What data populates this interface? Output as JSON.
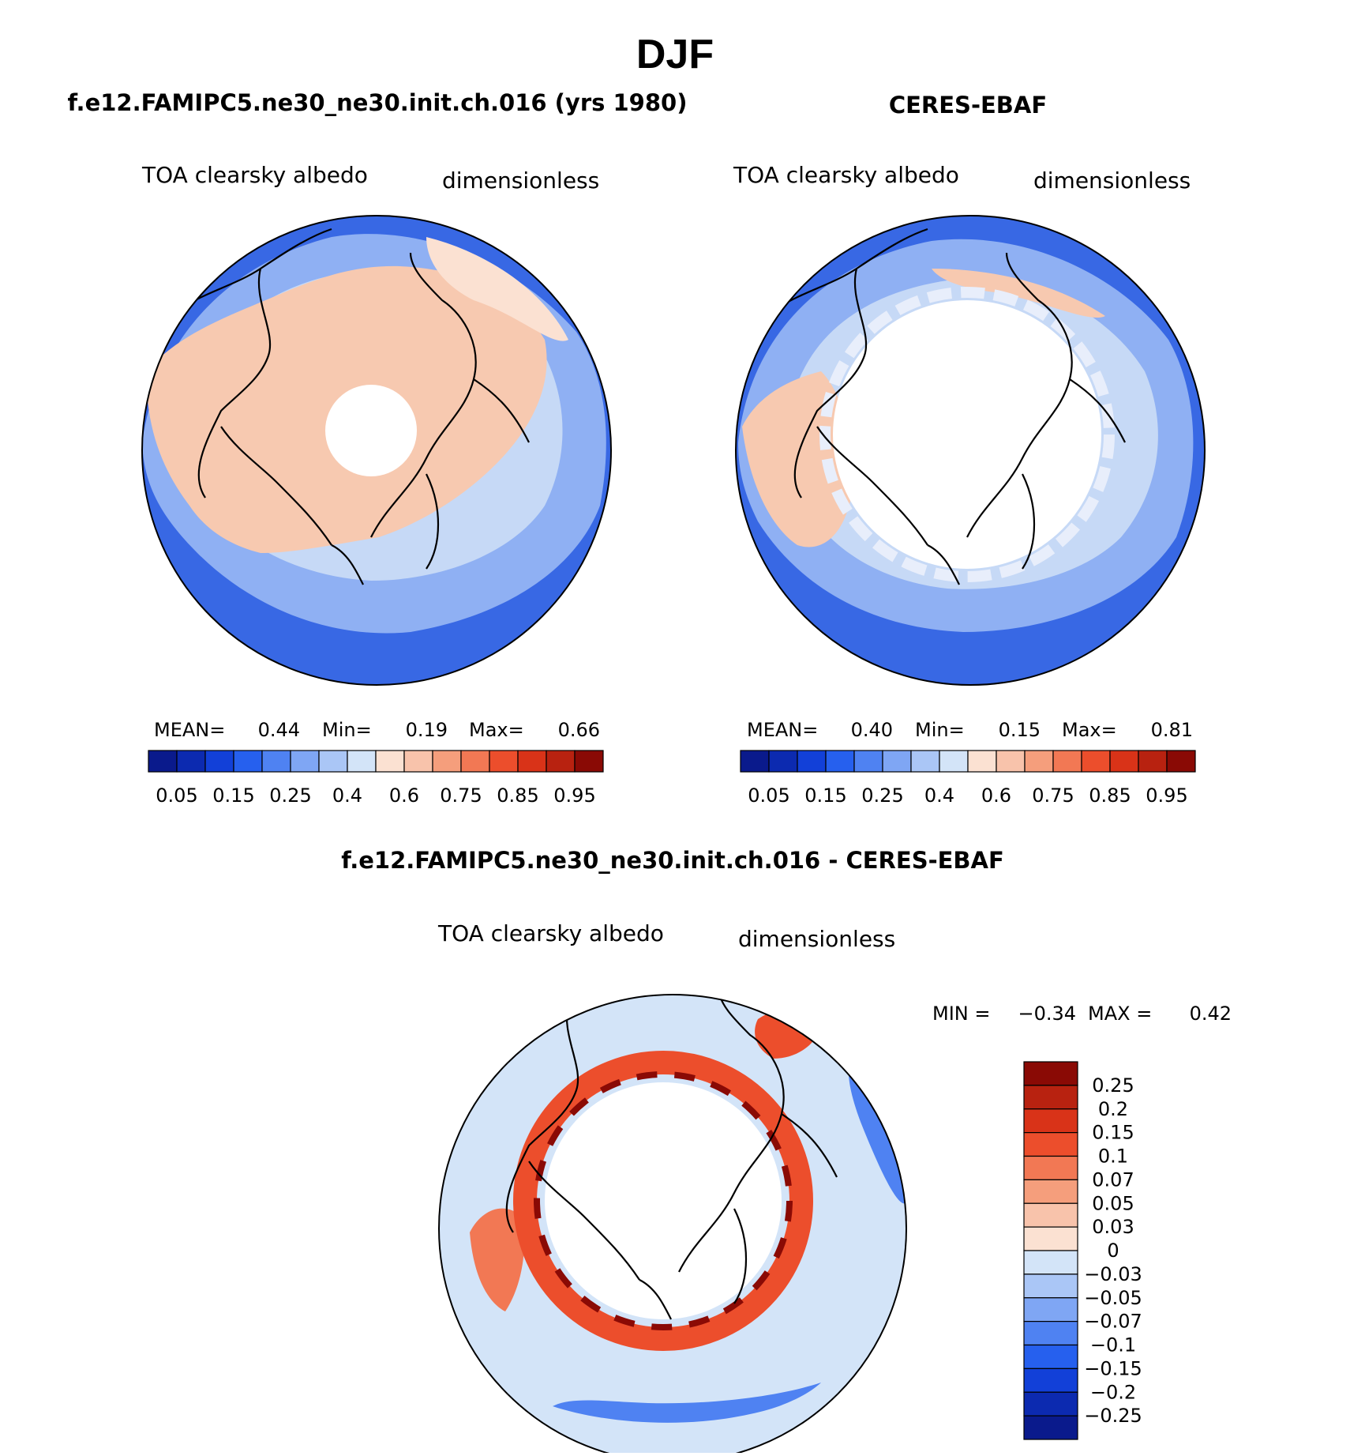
{
  "title": "DJF",
  "chart_data": [
    {
      "type": "heatmap",
      "projection": "north-polar-stereographic",
      "title": "f.e12.FAMIPC5.ne30_ne30.init.ch.016 (yrs 1980)",
      "variable": "TOA clearsky albedo",
      "units": "dimensionless",
      "stats": {
        "mean_label": "MEAN=",
        "mean": "0.44",
        "min_label": "Min=",
        "min": "0.19",
        "max_label": "Max=",
        "max": "0.66"
      },
      "levels": [
        "0.05",
        "0.15",
        "0.25",
        "0.4",
        "0.6",
        "0.75",
        "0.85",
        "0.95"
      ],
      "colors": [
        "#0a1a8c",
        "#0c2ab0",
        "#1240d8",
        "#2660ee",
        "#4f82f2",
        "#7fa6f4",
        "#aac6f6",
        "#d3e4f8",
        "#fbe1d2",
        "#f8c3ab",
        "#f59e7c",
        "#f27854",
        "#ec4e2c",
        "#d93318",
        "#b82210",
        "#8a0a05"
      ]
    },
    {
      "type": "heatmap",
      "projection": "north-polar-stereographic",
      "title": "CERES-EBAF",
      "variable": "TOA clearsky albedo",
      "units": "dimensionless",
      "stats": {
        "mean_label": "MEAN=",
        "mean": "0.40",
        "min_label": "Min=",
        "min": "0.15",
        "max_label": "Max=",
        "max": "0.81"
      },
      "levels": [
        "0.05",
        "0.15",
        "0.25",
        "0.4",
        "0.6",
        "0.75",
        "0.85",
        "0.95"
      ],
      "colors": [
        "#0a1a8c",
        "#0c2ab0",
        "#1240d8",
        "#2660ee",
        "#4f82f2",
        "#7fa6f4",
        "#aac6f6",
        "#d3e4f8",
        "#fbe1d2",
        "#f8c3ab",
        "#f59e7c",
        "#f27854",
        "#ec4e2c",
        "#d93318",
        "#b82210",
        "#8a0a05"
      ]
    },
    {
      "type": "heatmap",
      "projection": "north-polar-stereographic",
      "title": "f.e12.FAMIPC5.ne30_ne30.init.ch.016 - CERES-EBAF",
      "variable": "TOA clearsky albedo",
      "units": "dimensionless",
      "stats": {
        "min_label": "MIN =",
        "min": "−0.34",
        "max_label": "MAX =",
        "max": "0.42"
      },
      "levels": [
        "0.25",
        "0.2",
        "0.15",
        "0.1",
        "0.07",
        "0.05",
        "0.03",
        "0",
        "−0.03",
        "−0.05",
        "−0.07",
        "−0.1",
        "−0.15",
        "−0.2",
        "−0.25"
      ],
      "colors": [
        "#8a0a05",
        "#b82210",
        "#d93318",
        "#ec4e2c",
        "#f27854",
        "#f59e7c",
        "#f8c3ab",
        "#fbe1d2",
        "#d3e4f8",
        "#aac6f6",
        "#7fa6f4",
        "#4f82f2",
        "#2660ee",
        "#1240d8",
        "#0c2ab0",
        "#0a1a8c"
      ]
    }
  ]
}
